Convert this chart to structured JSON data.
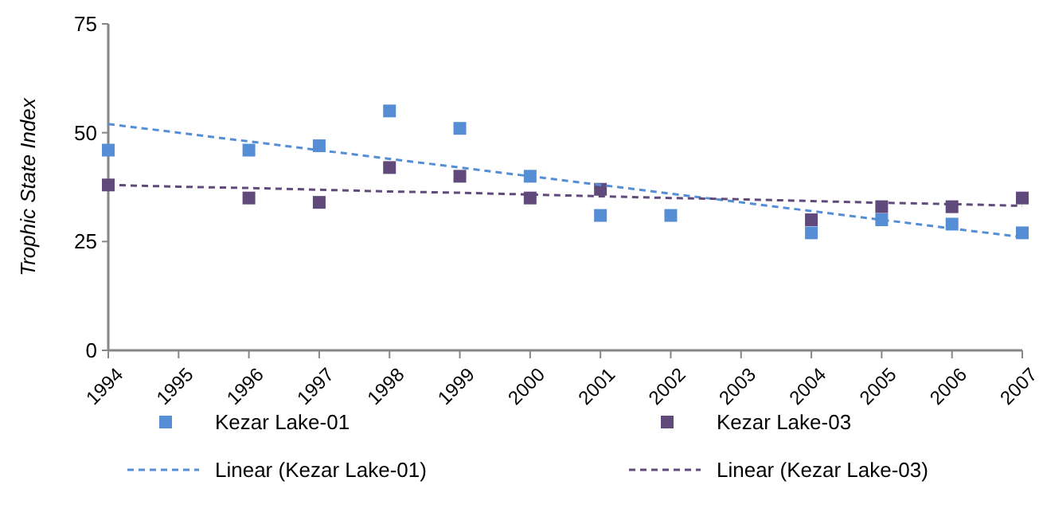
{
  "chart_data": {
    "type": "scatter",
    "ylabel": "Trophic State Index",
    "categories": [
      "1994",
      "1995",
      "1996",
      "1997",
      "1998",
      "1999",
      "2000",
      "2001",
      "2002",
      "2003",
      "2004",
      "2005",
      "2006",
      "2007"
    ],
    "ylim": [
      0,
      75
    ],
    "yticks": [
      0,
      25,
      50,
      75
    ],
    "grid": false,
    "legend": "bottom",
    "marker": "square",
    "series": [
      {
        "name": "Kezar Lake-01",
        "color": "#558ed5",
        "values": [
          46,
          null,
          46,
          47,
          55,
          51,
          40,
          31,
          31,
          null,
          27,
          30,
          29,
          27
        ]
      },
      {
        "name": "Kezar Lake-03",
        "color": "#604a7b",
        "values": [
          38,
          null,
          35,
          34,
          42,
          40,
          35,
          37,
          null,
          null,
          30,
          33,
          33,
          35
        ]
      },
      {
        "name": "Linear (Kezar Lake-01)",
        "type": "line",
        "color": "#558ed5",
        "values": [
          52,
          50,
          48,
          46,
          44,
          42,
          40,
          38,
          36,
          34,
          32,
          30,
          28,
          26
        ],
        "marker": "none",
        "line_style": "dashed"
      },
      {
        "name": "Linear (Kezar Lake-03)",
        "type": "line",
        "color": "#604a7b",
        "values": [
          38,
          37.6,
          37.3,
          36.9,
          36.5,
          36.2,
          35.8,
          35.4,
          35.0,
          34.7,
          34.3,
          33.9,
          33.6,
          33.2
        ],
        "marker": "none",
        "line_style": "dashed"
      }
    ]
  }
}
